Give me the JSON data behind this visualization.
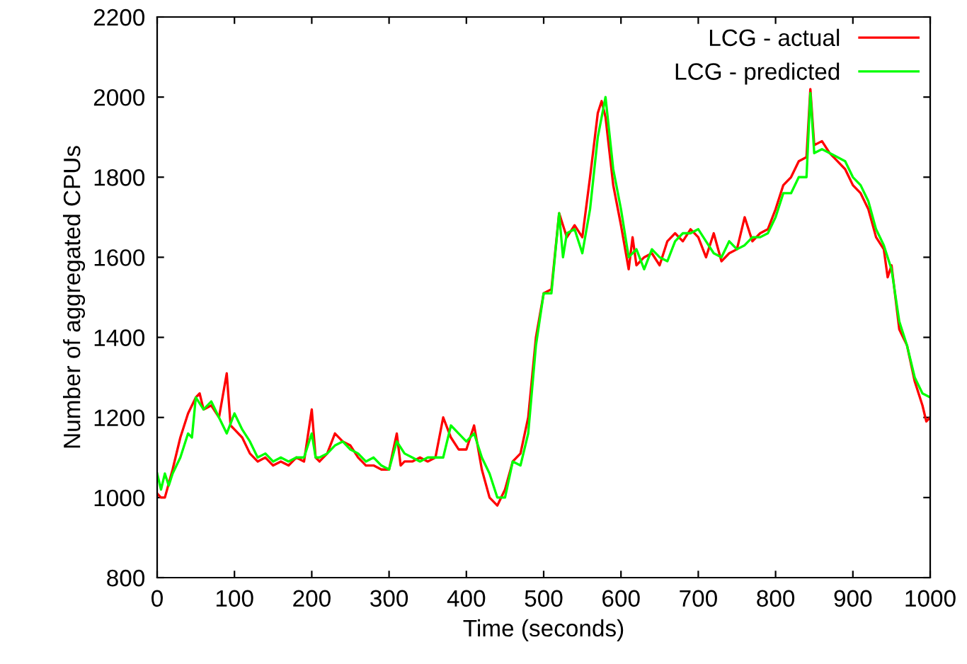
{
  "chart_data": {
    "type": "line",
    "xlabel": "Time (seconds)",
    "ylabel": "Number of aggregated CPUs",
    "xlim": [
      0,
      1000
    ],
    "xticks": [
      0,
      100,
      200,
      300,
      400,
      500,
      600,
      700,
      800,
      900,
      1000
    ],
    "ylim": [
      800,
      2200
    ],
    "yticks": [
      800,
      1000,
      1200,
      1400,
      1600,
      1800,
      2000,
      2200
    ],
    "grid": false,
    "legend": "top right",
    "line_style": "solid",
    "marker": "none",
    "series": [
      {
        "name": "LCG - actual",
        "color": "#ff0000",
        "x": [
          0,
          5,
          10,
          20,
          30,
          40,
          50,
          55,
          60,
          70,
          80,
          90,
          95,
          100,
          110,
          120,
          130,
          140,
          150,
          160,
          170,
          180,
          190,
          200,
          205,
          210,
          220,
          230,
          240,
          250,
          260,
          270,
          280,
          290,
          300,
          310,
          315,
          320,
          330,
          340,
          350,
          360,
          370,
          380,
          390,
          400,
          410,
          420,
          430,
          440,
          450,
          460,
          470,
          480,
          490,
          500,
          510,
          520,
          530,
          540,
          550,
          560,
          570,
          575,
          580,
          590,
          600,
          610,
          615,
          620,
          630,
          640,
          650,
          660,
          670,
          680,
          690,
          700,
          710,
          720,
          730,
          740,
          750,
          760,
          770,
          780,
          790,
          800,
          810,
          820,
          830,
          840,
          845,
          850,
          860,
          870,
          880,
          890,
          900,
          910,
          920,
          930,
          940,
          945,
          950,
          960,
          970,
          980,
          990,
          995,
          1000
        ],
        "values": [
          1010,
          1000,
          1000,
          1070,
          1150,
          1210,
          1250,
          1260,
          1220,
          1230,
          1200,
          1310,
          1180,
          1170,
          1150,
          1110,
          1090,
          1100,
          1080,
          1090,
          1080,
          1100,
          1090,
          1220,
          1100,
          1090,
          1110,
          1160,
          1140,
          1130,
          1100,
          1080,
          1080,
          1070,
          1070,
          1160,
          1080,
          1090,
          1090,
          1100,
          1090,
          1100,
          1200,
          1150,
          1120,
          1120,
          1180,
          1070,
          1000,
          980,
          1020,
          1090,
          1110,
          1200,
          1400,
          1510,
          1520,
          1710,
          1650,
          1680,
          1650,
          1800,
          1960,
          1990,
          1950,
          1780,
          1680,
          1570,
          1650,
          1580,
          1600,
          1610,
          1580,
          1640,
          1660,
          1640,
          1670,
          1650,
          1600,
          1660,
          1590,
          1610,
          1620,
          1700,
          1640,
          1660,
          1670,
          1720,
          1780,
          1800,
          1840,
          1850,
          2020,
          1880,
          1890,
          1860,
          1840,
          1820,
          1780,
          1760,
          1720,
          1650,
          1620,
          1550,
          1580,
          1420,
          1380,
          1290,
          1230,
          1190,
          1200
        ]
      },
      {
        "name": "LCG - predicted",
        "color": "#00ff00",
        "x": [
          0,
          5,
          10,
          15,
          20,
          30,
          40,
          45,
          50,
          60,
          70,
          80,
          90,
          100,
          110,
          120,
          130,
          140,
          150,
          160,
          170,
          180,
          190,
          200,
          205,
          210,
          220,
          230,
          240,
          250,
          260,
          270,
          280,
          290,
          300,
          310,
          320,
          330,
          340,
          350,
          360,
          370,
          380,
          390,
          400,
          410,
          420,
          430,
          440,
          450,
          460,
          470,
          480,
          490,
          500,
          510,
          520,
          525,
          530,
          540,
          550,
          560,
          570,
          580,
          590,
          600,
          610,
          620,
          630,
          640,
          650,
          660,
          670,
          680,
          690,
          700,
          710,
          720,
          730,
          740,
          750,
          760,
          770,
          780,
          790,
          800,
          810,
          820,
          830,
          840,
          845,
          850,
          860,
          870,
          880,
          890,
          900,
          910,
          920,
          930,
          940,
          950,
          960,
          970,
          980,
          990,
          1000
        ],
        "values": [
          1060,
          1020,
          1060,
          1030,
          1060,
          1100,
          1160,
          1150,
          1250,
          1220,
          1240,
          1200,
          1160,
          1210,
          1170,
          1140,
          1100,
          1110,
          1090,
          1100,
          1090,
          1100,
          1100,
          1160,
          1100,
          1100,
          1110,
          1130,
          1140,
          1120,
          1110,
          1090,
          1100,
          1080,
          1070,
          1140,
          1110,
          1100,
          1090,
          1100,
          1100,
          1100,
          1180,
          1160,
          1140,
          1160,
          1100,
          1060,
          1000,
          1000,
          1090,
          1080,
          1160,
          1380,
          1510,
          1510,
          1710,
          1600,
          1660,
          1670,
          1610,
          1720,
          1900,
          2000,
          1820,
          1720,
          1600,
          1620,
          1570,
          1620,
          1600,
          1590,
          1640,
          1660,
          1660,
          1670,
          1640,
          1610,
          1600,
          1640,
          1620,
          1630,
          1650,
          1650,
          1660,
          1700,
          1760,
          1760,
          1800,
          1800,
          2010,
          1860,
          1870,
          1860,
          1850,
          1840,
          1800,
          1780,
          1740,
          1670,
          1630,
          1570,
          1440,
          1380,
          1300,
          1260,
          1250
        ]
      }
    ]
  }
}
